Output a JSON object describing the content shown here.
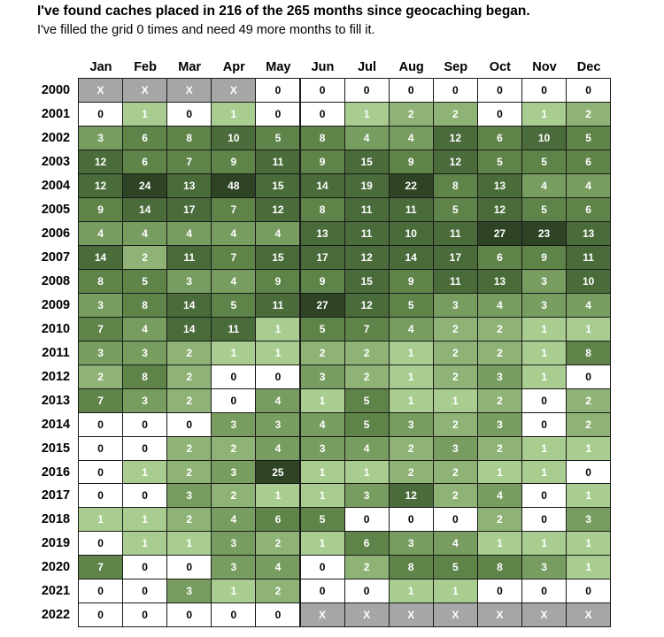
{
  "title": "I've found caches placed in 216 of the 265 months since geocaching began.",
  "subtitle": "I've filled the grid 0 times and need 49 more months to fill it.",
  "chart_data": {
    "type": "heatmap",
    "title": "I've found caches placed in 216 of the 265 months since geocaching began.",
    "subtitle": "I've filled the grid 0 times and need 49 more months to fill it.",
    "months": [
      "Jan",
      "Feb",
      "Mar",
      "Apr",
      "May",
      "Jun",
      "Jul",
      "Aug",
      "Sep",
      "Oct",
      "Nov",
      "Dec"
    ],
    "rows": [
      {
        "year": "2000",
        "values": [
          "X",
          "X",
          "X",
          "X",
          "0",
          "0",
          "0",
          "0",
          "0",
          "0",
          "0",
          "0"
        ]
      },
      {
        "year": "2001",
        "values": [
          "0",
          "1",
          "0",
          "1",
          "0",
          "0",
          "1",
          "2",
          "2",
          "0",
          "1",
          "2"
        ]
      },
      {
        "year": "2002",
        "values": [
          "3",
          "6",
          "8",
          "10",
          "5",
          "8",
          "4",
          "4",
          "12",
          "6",
          "10",
          "5"
        ]
      },
      {
        "year": "2003",
        "values": [
          "12",
          "6",
          "7",
          "9",
          "11",
          "9",
          "15",
          "9",
          "12",
          "5",
          "5",
          "6"
        ]
      },
      {
        "year": "2004",
        "values": [
          "12",
          "24",
          "13",
          "48",
          "15",
          "14",
          "19",
          "22",
          "8",
          "13",
          "4",
          "4"
        ]
      },
      {
        "year": "2005",
        "values": [
          "9",
          "14",
          "17",
          "7",
          "12",
          "8",
          "11",
          "11",
          "5",
          "12",
          "5",
          "6"
        ]
      },
      {
        "year": "2006",
        "values": [
          "4",
          "4",
          "4",
          "4",
          "4",
          "13",
          "11",
          "10",
          "11",
          "27",
          "23",
          "13"
        ]
      },
      {
        "year": "2007",
        "values": [
          "14",
          "2",
          "11",
          "7",
          "15",
          "17",
          "12",
          "14",
          "17",
          "6",
          "9",
          "11"
        ]
      },
      {
        "year": "2008",
        "values": [
          "8",
          "5",
          "3",
          "4",
          "9",
          "9",
          "15",
          "9",
          "11",
          "13",
          "3",
          "10"
        ]
      },
      {
        "year": "2009",
        "values": [
          "3",
          "8",
          "14",
          "5",
          "11",
          "27",
          "12",
          "5",
          "3",
          "4",
          "3",
          "4"
        ]
      },
      {
        "year": "2010",
        "values": [
          "7",
          "4",
          "14",
          "11",
          "1",
          "5",
          "7",
          "4",
          "2",
          "2",
          "1",
          "1"
        ]
      },
      {
        "year": "2011",
        "values": [
          "3",
          "3",
          "2",
          "1",
          "1",
          "2",
          "2",
          "1",
          "2",
          "2",
          "1",
          "8"
        ]
      },
      {
        "year": "2012",
        "values": [
          "2",
          "8",
          "2",
          "0",
          "0",
          "3",
          "2",
          "1",
          "2",
          "3",
          "1",
          "0"
        ]
      },
      {
        "year": "2013",
        "values": [
          "7",
          "3",
          "2",
          "0",
          "4",
          "1",
          "5",
          "1",
          "1",
          "2",
          "0",
          "2"
        ]
      },
      {
        "year": "2014",
        "values": [
          "0",
          "0",
          "0",
          "3",
          "3",
          "4",
          "5",
          "3",
          "2",
          "3",
          "0",
          "2"
        ]
      },
      {
        "year": "2015",
        "values": [
          "0",
          "0",
          "2",
          "2",
          "4",
          "3",
          "4",
          "2",
          "3",
          "2",
          "1",
          "1"
        ]
      },
      {
        "year": "2016",
        "values": [
          "0",
          "1",
          "2",
          "3",
          "25",
          "1",
          "1",
          "2",
          "2",
          "1",
          "1",
          "0"
        ]
      },
      {
        "year": "2017",
        "values": [
          "0",
          "0",
          "3",
          "2",
          "1",
          "1",
          "3",
          "12",
          "2",
          "4",
          "0",
          "1"
        ]
      },
      {
        "year": "2018",
        "values": [
          "1",
          "1",
          "2",
          "4",
          "6",
          "5",
          "0",
          "0",
          "0",
          "2",
          "0",
          "3"
        ]
      },
      {
        "year": "2019",
        "values": [
          "0",
          "1",
          "1",
          "3",
          "2",
          "1",
          "6",
          "3",
          "4",
          "1",
          "1",
          "1"
        ]
      },
      {
        "year": "2020",
        "values": [
          "7",
          "0",
          "0",
          "3",
          "4",
          "0",
          "2",
          "8",
          "5",
          "8",
          "3",
          "1"
        ]
      },
      {
        "year": "2021",
        "values": [
          "0",
          "0",
          "3",
          "1",
          "2",
          "0",
          "0",
          "1",
          "1",
          "0",
          "0",
          "0"
        ]
      },
      {
        "year": "2022",
        "values": [
          "0",
          "0",
          "0",
          "0",
          "0",
          "X",
          "X",
          "X",
          "X",
          "X",
          "X",
          "X"
        ]
      }
    ],
    "colors": {
      "zero": "#ffffff",
      "x": "#a6a6a6",
      "scale": [
        "#a9cd90",
        "#8fb376",
        "#789d60",
        "#5f844a",
        "#4a6b3a",
        "#2e4424"
      ]
    }
  }
}
